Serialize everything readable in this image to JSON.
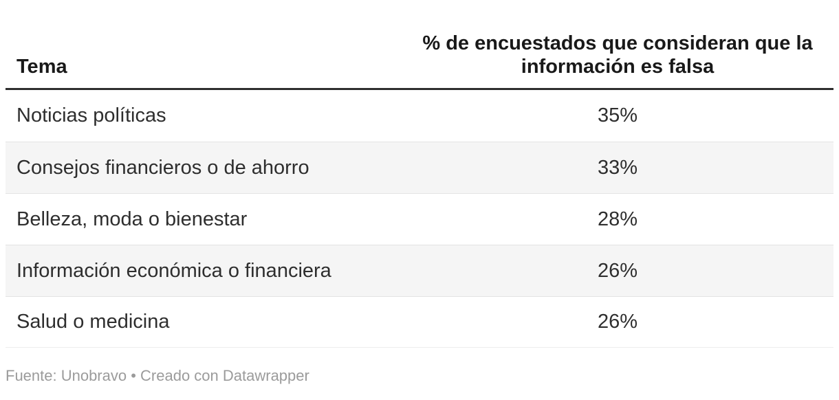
{
  "chart_data": {
    "type": "table",
    "columns": [
      "Tema",
      "% de encuestados que consideran que la información es falsa"
    ],
    "rows": [
      [
        "Noticias políticas",
        "35%"
      ],
      [
        "Consejos financieros o de ahorro",
        "33%"
      ],
      [
        "Belleza, moda o bienestar",
        "28%"
      ],
      [
        "Información económica o financiera",
        "26%"
      ],
      [
        "Salud o medicina",
        "26%"
      ]
    ],
    "values_numeric": [
      35,
      33,
      28,
      26,
      26
    ],
    "source_line": "Fuente: Unobravo • Creado con Datawrapper",
    "layout_hints": {
      "zebra_striping": true,
      "value_column_align": "center",
      "header_align": [
        "left",
        "center"
      ]
    }
  },
  "table": {
    "header": {
      "tema": "Tema",
      "pct": "% de encuestados que consideran que la información es falsa"
    },
    "rows": [
      {
        "label": "Noticias políticas",
        "value": "35%"
      },
      {
        "label": "Consejos financieros o de ahorro",
        "value": "33%"
      },
      {
        "label": "Belleza, moda o bienestar",
        "value": "28%"
      },
      {
        "label": "Información económica o financiera",
        "value": "26%"
      },
      {
        "label": "Salud o medicina",
        "value": "26%"
      }
    ]
  },
  "footer": {
    "text": "Fuente: Unobravo • Creado con Datawrapper"
  },
  "colors": {
    "header_text": "#191919",
    "body_text": "#2e2e2e",
    "header_rule": "#2e2e2e",
    "row_alt_background": "#f5f5f5",
    "row_separator": "#e3e3e3",
    "footer_text": "#9b9b9b",
    "background": "#ffffff"
  }
}
